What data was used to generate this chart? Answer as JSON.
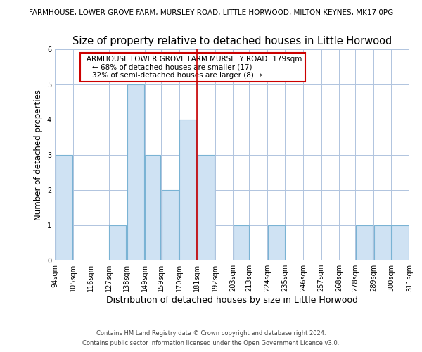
{
  "title": "Size of property relative to detached houses in Little Horwood",
  "suptitle": "FARMHOUSE, LOWER GROVE FARM, MURSLEY ROAD, LITTLE HORWOOD, MILTON KEYNES, MK17 0PG",
  "xlabel": "Distribution of detached houses by size in Little Horwood",
  "ylabel": "Number of detached properties",
  "bar_left_edges": [
    94,
    105,
    116,
    127,
    138,
    149,
    159,
    170,
    181,
    192,
    203,
    213,
    224,
    235,
    246,
    257,
    268,
    278,
    289,
    300
  ],
  "bar_widths": [
    11,
    11,
    11,
    11,
    11,
    10,
    11,
    11,
    11,
    11,
    10,
    11,
    11,
    11,
    11,
    11,
    10,
    11,
    11,
    11
  ],
  "bar_heights": [
    3,
    0,
    0,
    1,
    5,
    3,
    2,
    4,
    3,
    0,
    1,
    0,
    1,
    0,
    0,
    0,
    0,
    1,
    1,
    1
  ],
  "bar_color": "#cfe2f3",
  "bar_edge_color": "#7ab3d4",
  "vline_x": 181,
  "vline_color": "#cc0000",
  "ylim": [
    0,
    6
  ],
  "yticks": [
    0,
    1,
    2,
    3,
    4,
    5,
    6
  ],
  "xtick_labels": [
    "94sqm",
    "105sqm",
    "116sqm",
    "127sqm",
    "138sqm",
    "149sqm",
    "159sqm",
    "170sqm",
    "181sqm",
    "192sqm",
    "203sqm",
    "213sqm",
    "224sqm",
    "235sqm",
    "246sqm",
    "257sqm",
    "268sqm",
    "278sqm",
    "289sqm",
    "300sqm",
    "311sqm"
  ],
  "annotation_title": "FARMHOUSE LOWER GROVE FARM MURSLEY ROAD: 179sqm",
  "annotation_line2": "← 68% of detached houses are smaller (17)",
  "annotation_line3": "32% of semi-detached houses are larger (8) →",
  "footnote1": "Contains HM Land Registry data © Crown copyright and database right 2024.",
  "footnote2": "Contains public sector information licensed under the Open Government Licence v3.0.",
  "background_color": "#ffffff",
  "grid_color": "#b0c4de",
  "title_fontsize": 10.5,
  "suptitle_fontsize": 7.5,
  "ylabel_fontsize": 8.5,
  "xlabel_fontsize": 9,
  "tick_fontsize": 7,
  "annot_fontsize": 7.5,
  "footnote_fontsize": 6.0
}
